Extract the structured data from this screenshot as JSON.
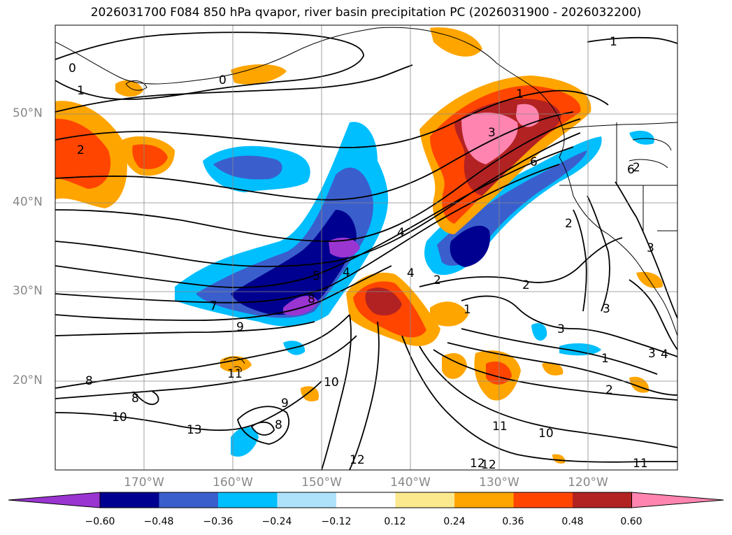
{
  "title": "2026031700 F084 850 hPa qvapor, river basin precipitation PC (2026031900 - 2026032200)",
  "lat_labels": [
    "50°N",
    "40°N",
    "30°N",
    "20°N"
  ],
  "lon_labels": [
    "170°W",
    "160°W",
    "150°W",
    "140°W",
    "130°W",
    "120°W"
  ],
  "colorbar": {
    "ticks": [
      "−0.60",
      "−0.48",
      "−0.36",
      "−0.24",
      "−0.12",
      "0.12",
      "0.24",
      "0.36",
      "0.48",
      "0.60"
    ],
    "colors": [
      "#9a35d1",
      "#000090",
      "#3a5fcd",
      "#00bfff",
      "#aee2fb",
      "#ffffff",
      "#fce98e",
      "#ffa500",
      "#ff4500",
      "#b22222",
      "#ff85b0"
    ]
  },
  "contour_labels": [
    "0",
    "0",
    "1",
    "1",
    "2",
    "1",
    "3",
    "6",
    "2",
    "4",
    "4",
    "5",
    "7",
    "8",
    "9",
    "4",
    "2",
    "1",
    "2",
    "3",
    "3",
    "3",
    "1",
    "2",
    "6",
    "8",
    "8",
    "10",
    "9",
    "8",
    "10",
    "13",
    "11",
    "12",
    "10",
    "11",
    "12",
    "11",
    "2",
    "3",
    "4",
    "12"
  ]
}
